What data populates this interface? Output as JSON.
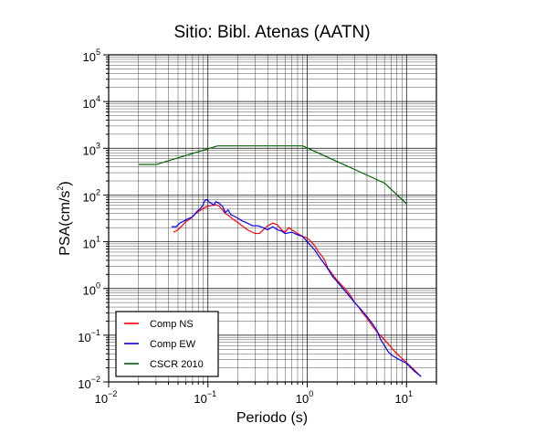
{
  "chart_data": {
    "type": "line",
    "title": "Sitio: Bibl. Atenas (AATN)",
    "xlabel": "Periodo (s)",
    "ylabel_main": "PSA(cm/s",
    "ylabel_sup": "2",
    "ylabel_end": ")",
    "x_scale": "log",
    "y_scale": "log",
    "xlim": [
      0.01,
      20
    ],
    "ylim": [
      0.01,
      100000
    ],
    "grid": true,
    "legend_position": "bottom-left",
    "x_ticks": [
      {
        "base": "10",
        "exp": "−2",
        "value": 0.01
      },
      {
        "base": "10",
        "exp": "−1",
        "value": 0.1
      },
      {
        "base": "10",
        "exp": "0",
        "value": 1
      },
      {
        "base": "10",
        "exp": "1",
        "value": 10
      }
    ],
    "y_ticks": [
      {
        "base": "10",
        "exp": "−2",
        "value": 0.01
      },
      {
        "base": "10",
        "exp": "−1",
        "value": 0.1
      },
      {
        "base": "10",
        "exp": "0",
        "value": 1
      },
      {
        "base": "10",
        "exp": "1",
        "value": 10
      },
      {
        "base": "10",
        "exp": "2",
        "value": 100
      },
      {
        "base": "10",
        "exp": "3",
        "value": 1000
      },
      {
        "base": "10",
        "exp": "4",
        "value": 10000
      },
      {
        "base": "10",
        "exp": "5",
        "value": 100000
      }
    ],
    "series": [
      {
        "name": "Comp NS",
        "color": "#ff0000",
        "points": [
          [
            0.045,
            16
          ],
          [
            0.05,
            18
          ],
          [
            0.055,
            22
          ],
          [
            0.06,
            27
          ],
          [
            0.065,
            30
          ],
          [
            0.07,
            34
          ],
          [
            0.075,
            40
          ],
          [
            0.08,
            44
          ],
          [
            0.085,
            48
          ],
          [
            0.09,
            52
          ],
          [
            0.1,
            58
          ],
          [
            0.11,
            60
          ],
          [
            0.12,
            62
          ],
          [
            0.13,
            58
          ],
          [
            0.14,
            48
          ],
          [
            0.15,
            40
          ],
          [
            0.16,
            37
          ],
          [
            0.18,
            30
          ],
          [
            0.2,
            26
          ],
          [
            0.22,
            22
          ],
          [
            0.25,
            18
          ],
          [
            0.28,
            16
          ],
          [
            0.3,
            15
          ],
          [
            0.33,
            15
          ],
          [
            0.36,
            18
          ],
          [
            0.4,
            22
          ],
          [
            0.45,
            25
          ],
          [
            0.5,
            23
          ],
          [
            0.55,
            18
          ],
          [
            0.6,
            16
          ],
          [
            0.65,
            20
          ],
          [
            0.7,
            18
          ],
          [
            0.8,
            15
          ],
          [
            0.9,
            13
          ],
          [
            1.0,
            12
          ],
          [
            1.1,
            10
          ],
          [
            1.2,
            8
          ],
          [
            1.3,
            6
          ],
          [
            1.4,
            5
          ],
          [
            1.5,
            4
          ],
          [
            1.6,
            2.8
          ],
          [
            1.8,
            2.0
          ],
          [
            2.0,
            1.5
          ],
          [
            2.2,
            1.2
          ],
          [
            2.5,
            0.9
          ],
          [
            2.8,
            0.65
          ],
          [
            3.0,
            0.5
          ],
          [
            3.3,
            0.4
          ],
          [
            3.6,
            0.3
          ],
          [
            4.0,
            0.23
          ],
          [
            4.5,
            0.16
          ],
          [
            5.0,
            0.12
          ],
          [
            6.0,
            0.08
          ],
          [
            7.0,
            0.055
          ],
          [
            8.0,
            0.04
          ],
          [
            10.0,
            0.026
          ],
          [
            12.0,
            0.018
          ],
          [
            14.0,
            0.013
          ]
        ]
      },
      {
        "name": "Comp EW",
        "color": "#0000ff",
        "points": [
          [
            0.043,
            21
          ],
          [
            0.048,
            21
          ],
          [
            0.052,
            25
          ],
          [
            0.058,
            28
          ],
          [
            0.063,
            31
          ],
          [
            0.068,
            33
          ],
          [
            0.073,
            38
          ],
          [
            0.078,
            45
          ],
          [
            0.083,
            50
          ],
          [
            0.088,
            58
          ],
          [
            0.092,
            72
          ],
          [
            0.095,
            80
          ],
          [
            0.1,
            76
          ],
          [
            0.105,
            68
          ],
          [
            0.11,
            65
          ],
          [
            0.115,
            60
          ],
          [
            0.12,
            72
          ],
          [
            0.13,
            66
          ],
          [
            0.14,
            58
          ],
          [
            0.15,
            42
          ],
          [
            0.16,
            48
          ],
          [
            0.17,
            38
          ],
          [
            0.18,
            36
          ],
          [
            0.2,
            32
          ],
          [
            0.22,
            28
          ],
          [
            0.25,
            25
          ],
          [
            0.28,
            22
          ],
          [
            0.32,
            22
          ],
          [
            0.36,
            20
          ],
          [
            0.4,
            18
          ],
          [
            0.45,
            21
          ],
          [
            0.5,
            18
          ],
          [
            0.55,
            17
          ],
          [
            0.6,
            15
          ],
          [
            0.7,
            16
          ],
          [
            0.8,
            14
          ],
          [
            0.9,
            13
          ],
          [
            1.0,
            10
          ],
          [
            1.1,
            8
          ],
          [
            1.2,
            6.5
          ],
          [
            1.3,
            5
          ],
          [
            1.4,
            4
          ],
          [
            1.5,
            3.3
          ],
          [
            1.6,
            2.7
          ],
          [
            1.8,
            1.8
          ],
          [
            2.0,
            1.4
          ],
          [
            2.2,
            1.1
          ],
          [
            2.5,
            0.8
          ],
          [
            2.8,
            0.6
          ],
          [
            3.0,
            0.5
          ],
          [
            3.5,
            0.35
          ],
          [
            4.0,
            0.25
          ],
          [
            4.5,
            0.18
          ],
          [
            5.0,
            0.13
          ],
          [
            5.5,
            0.08
          ],
          [
            6.0,
            0.06
          ],
          [
            6.5,
            0.045
          ],
          [
            7.0,
            0.038
          ],
          [
            8.0,
            0.032
          ],
          [
            10.0,
            0.025
          ],
          [
            12.0,
            0.017
          ],
          [
            14.0,
            0.013
          ]
        ]
      },
      {
        "name": "CSCR 2010",
        "color": "#006400",
        "points": [
          [
            0.02,
            450
          ],
          [
            0.03,
            450
          ],
          [
            0.125,
            1125
          ],
          [
            0.9,
            1125
          ],
          [
            6.0,
            180
          ],
          [
            10.0,
            65
          ]
        ]
      }
    ]
  }
}
